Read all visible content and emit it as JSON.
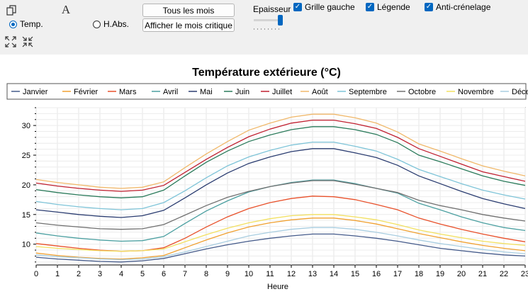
{
  "toolbar": {
    "radio_temp": "Temp.",
    "radio_habs": "H.Abs.",
    "btn_all_months": "Tous les mois",
    "btn_critical_month": "Afficher le mois critique",
    "thickness_label": "Epaisseur",
    "grid_left": "Grille gauche",
    "legend": "Légende",
    "antialias": "Anti-crénelage",
    "font_glyph": "A"
  },
  "chart_data": {
    "type": "line",
    "title": "Température extérieure (°C)",
    "xlabel": "Heure",
    "ylabel": "",
    "xlim": [
      0,
      23
    ],
    "ylim": [
      6.5,
      33
    ],
    "x": [
      0,
      1,
      2,
      3,
      4,
      5,
      6,
      7,
      8,
      9,
      10,
      11,
      12,
      13,
      14,
      15,
      16,
      17,
      18,
      19,
      20,
      21,
      22,
      23
    ],
    "yticks": [
      10,
      15,
      20,
      25,
      30
    ],
    "grid": true,
    "legend_position": "top",
    "series": [
      {
        "name": "Janvier",
        "color": "#445a8a",
        "values": [
          7.8,
          7.5,
          7.3,
          7.1,
          7.0,
          7.2,
          7.6,
          8.4,
          9.2,
          9.9,
          10.5,
          11.0,
          11.4,
          11.7,
          11.7,
          11.4,
          11.0,
          10.5,
          9.9,
          9.3,
          8.9,
          8.5,
          8.2,
          8.0
        ]
      },
      {
        "name": "Février",
        "color": "#f0a030",
        "values": [
          8.5,
          8.1,
          7.8,
          7.6,
          7.5,
          7.7,
          8.1,
          9.4,
          10.7,
          11.9,
          12.9,
          13.6,
          14.1,
          14.4,
          14.4,
          14.0,
          13.4,
          12.6,
          11.8,
          11.1,
          10.4,
          9.8,
          9.3,
          8.9
        ]
      },
      {
        "name": "Mars",
        "color": "#e8502a",
        "values": [
          10.1,
          9.7,
          9.3,
          9.0,
          8.8,
          8.9,
          9.4,
          11.0,
          12.9,
          14.6,
          16.0,
          17.0,
          17.7,
          18.1,
          18.0,
          17.5,
          16.7,
          15.8,
          14.4,
          13.4,
          12.5,
          11.7,
          11.0,
          10.4
        ]
      },
      {
        "name": "Avril",
        "color": "#4a9fa0",
        "values": [
          11.9,
          11.4,
          11.0,
          10.7,
          10.5,
          10.6,
          11.3,
          13.5,
          15.6,
          17.3,
          18.8,
          19.7,
          20.4,
          20.8,
          20.8,
          20.2,
          19.4,
          18.6,
          16.9,
          15.8,
          14.6,
          13.6,
          12.8,
          12.3
        ]
      },
      {
        "name": "Mai",
        "color": "#2a3c70",
        "values": [
          15.8,
          15.4,
          15.0,
          14.7,
          14.5,
          14.8,
          15.7,
          17.8,
          20.0,
          22.0,
          23.6,
          24.7,
          25.6,
          26.1,
          26.1,
          25.4,
          24.6,
          23.3,
          21.5,
          20.2,
          18.9,
          17.7,
          16.8,
          16.0
        ]
      },
      {
        "name": "Juin",
        "color": "#2a7a5a",
        "values": [
          19.2,
          18.7,
          18.3,
          18.0,
          17.8,
          18.0,
          19.1,
          21.5,
          23.8,
          25.7,
          27.3,
          28.4,
          29.3,
          29.8,
          29.8,
          29.3,
          28.5,
          27.1,
          25.0,
          23.9,
          22.7,
          21.5,
          20.6,
          19.9
        ]
      },
      {
        "name": "Juillet",
        "color": "#c02030",
        "values": [
          20.3,
          19.8,
          19.4,
          19.1,
          18.9,
          19.1,
          19.9,
          22.1,
          24.3,
          26.3,
          28.1,
          29.4,
          30.4,
          30.9,
          30.9,
          30.3,
          29.5,
          28.0,
          26.1,
          24.8,
          23.5,
          22.2,
          21.4,
          20.6
        ]
      },
      {
        "name": "Août",
        "color": "#f0b86a",
        "values": [
          20.9,
          20.4,
          20.0,
          19.6,
          19.4,
          19.6,
          20.5,
          22.9,
          25.2,
          27.3,
          29.2,
          30.4,
          31.4,
          31.9,
          31.9,
          31.3,
          30.4,
          28.9,
          26.9,
          25.7,
          24.4,
          23.2,
          22.3,
          21.5
        ]
      },
      {
        "name": "Septembre",
        "color": "#7ec4d8",
        "values": [
          17.2,
          16.7,
          16.3,
          16.0,
          15.8,
          16.0,
          17.0,
          19.0,
          21.2,
          23.2,
          24.7,
          25.8,
          26.7,
          27.2,
          27.2,
          26.5,
          25.7,
          24.3,
          22.6,
          21.4,
          20.2,
          19.1,
          18.3,
          17.6
        ]
      },
      {
        "name": "Octobre",
        "color": "#707070",
        "values": [
          13.6,
          13.2,
          12.9,
          12.6,
          12.5,
          12.6,
          13.3,
          14.9,
          16.5,
          17.9,
          18.9,
          19.7,
          20.3,
          20.7,
          20.7,
          20.1,
          19.4,
          18.7,
          17.4,
          16.5,
          15.8,
          15.0,
          14.4,
          13.9
        ]
      },
      {
        "name": "Novembre",
        "color": "#f2e060",
        "values": [
          9.6,
          9.3,
          9.1,
          8.9,
          8.8,
          8.9,
          9.2,
          10.4,
          11.6,
          12.7,
          13.6,
          14.3,
          14.8,
          15.0,
          15.0,
          14.6,
          14.1,
          13.3,
          12.4,
          11.7,
          11.1,
          10.5,
          10.1,
          9.8
        ]
      },
      {
        "name": "Décembre",
        "color": "#a8cde0",
        "values": [
          8.2,
          7.9,
          7.7,
          7.5,
          7.4,
          7.5,
          7.9,
          8.7,
          9.6,
          10.5,
          11.4,
          12.0,
          12.5,
          12.8,
          12.8,
          12.5,
          12.0,
          11.4,
          10.7,
          10.1,
          9.6,
          9.1,
          8.7,
          8.4
        ]
      }
    ]
  }
}
